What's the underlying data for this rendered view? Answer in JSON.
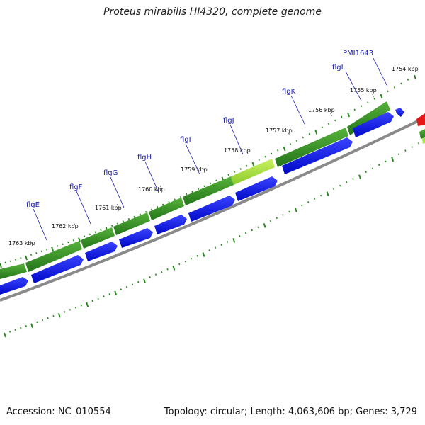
{
  "title": "Proteus mirabilis HI4320, complete genome",
  "accession": "Accession: NC_010554",
  "summary": "Topology: circular; Length: 4,063,606 bp; Genes: 3,729",
  "colors": {
    "cds_dark": "#2e8b1e",
    "cds_light": "#4aa832",
    "gene_light_green": "#a6e640",
    "protein_blue": "#0b13e6",
    "rrna_red": "#e61616",
    "backbone": "#8a8a8a",
    "ticks": "#2a8a1e",
    "label_text": "#1a1ab0"
  },
  "kbp_labels": [
    "1754 kbp",
    "1755 kbp",
    "1756 kbp",
    "1757 kbp",
    "1758 kbp",
    "1759 kbp",
    "1760 kbp",
    "1761 kbp",
    "1762 kbp",
    "1763 kbp"
  ],
  "gene_labels": [
    "PMI1643",
    "flgL",
    "flgK",
    "flgJ",
    "flgI",
    "flgH",
    "flgG",
    "flgF",
    "flgE"
  ]
}
